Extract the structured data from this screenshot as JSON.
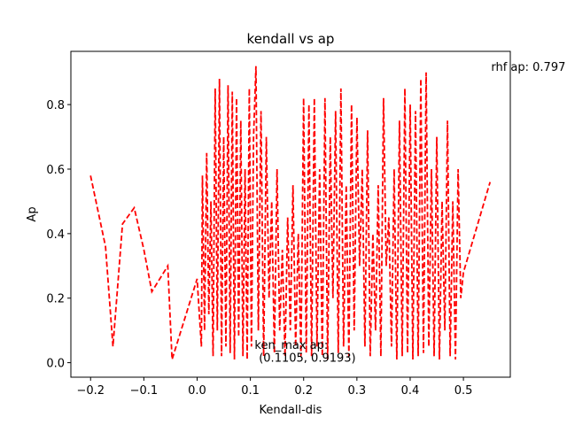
{
  "chart_data": {
    "type": "line",
    "title": "kendall vs ap",
    "xlabel": "Kendall-dis",
    "ylabel": "Ap",
    "xlim": [
      -0.237,
      0.588
    ],
    "ylim": [
      -0.045,
      0.965
    ],
    "xticks": [
      -0.2,
      -0.1,
      0.0,
      0.1,
      0.2,
      0.3,
      0.4,
      0.5
    ],
    "xtick_labels": [
      "−0.2",
      "−0.1",
      "0.0",
      "0.1",
      "0.2",
      "0.3",
      "0.4",
      "0.5"
    ],
    "yticks": [
      0.0,
      0.2,
      0.4,
      0.6,
      0.8
    ],
    "ytick_labels": [
      "0.0",
      "0.2",
      "0.4",
      "0.6",
      "0.8"
    ],
    "grid": false,
    "legend": "none",
    "series": [
      {
        "color": "#ff0000",
        "linestyle": "dashed",
        "x": [
          -0.2,
          -0.172,
          -0.158,
          -0.14,
          -0.118,
          -0.1,
          -0.085,
          -0.055,
          -0.047,
          0.0,
          0.008,
          0.01,
          0.014,
          0.018,
          0.022,
          0.026,
          0.03,
          0.034,
          0.038,
          0.042,
          0.046,
          0.05,
          0.054,
          0.058,
          0.062,
          0.066,
          0.07,
          0.074,
          0.078,
          0.082,
          0.086,
          0.09,
          0.094,
          0.098,
          0.102,
          0.106,
          0.1105,
          0.115,
          0.12,
          0.125,
          0.13,
          0.135,
          0.14,
          0.145,
          0.15,
          0.155,
          0.16,
          0.165,
          0.17,
          0.175,
          0.18,
          0.185,
          0.19,
          0.195,
          0.2,
          0.205,
          0.21,
          0.215,
          0.22,
          0.225,
          0.23,
          0.235,
          0.24,
          0.245,
          0.25,
          0.255,
          0.26,
          0.265,
          0.27,
          0.275,
          0.28,
          0.285,
          0.29,
          0.295,
          0.3,
          0.305,
          0.31,
          0.315,
          0.32,
          0.325,
          0.33,
          0.335,
          0.34,
          0.345,
          0.35,
          0.355,
          0.36,
          0.365,
          0.37,
          0.375,
          0.38,
          0.385,
          0.39,
          0.395,
          0.4,
          0.405,
          0.41,
          0.415,
          0.42,
          0.425,
          0.43,
          0.435,
          0.44,
          0.445,
          0.45,
          0.455,
          0.46,
          0.465,
          0.47,
          0.475,
          0.48,
          0.485,
          0.49,
          0.495,
          0.5,
          0.55
        ],
        "y": [
          0.58,
          0.36,
          0.05,
          0.43,
          0.48,
          0.35,
          0.22,
          0.3,
          0.01,
          0.26,
          0.05,
          0.58,
          0.1,
          0.65,
          0.15,
          0.5,
          0.02,
          0.85,
          0.1,
          0.88,
          0.02,
          0.7,
          0.05,
          0.86,
          0.03,
          0.84,
          0.01,
          0.82,
          0.08,
          0.75,
          0.02,
          0.6,
          0.01,
          0.85,
          0.05,
          0.7,
          0.9193,
          0.1,
          0.78,
          0.02,
          0.7,
          0.2,
          0.5,
          0.03,
          0.6,
          0.1,
          0.35,
          0.02,
          0.45,
          0.1,
          0.55,
          0.05,
          0.4,
          0.02,
          0.82,
          0.03,
          0.8,
          0.02,
          0.82,
          0.05,
          0.6,
          0.02,
          0.82,
          0.01,
          0.7,
          0.2,
          0.78,
          0.03,
          0.85,
          0.05,
          0.55,
          0.02,
          0.8,
          0.1,
          0.76,
          0.3,
          0.6,
          0.05,
          0.72,
          0.02,
          0.4,
          0.1,
          0.55,
          0.02,
          0.82,
          0.3,
          0.45,
          0.05,
          0.6,
          0.01,
          0.75,
          0.02,
          0.85,
          0.03,
          0.8,
          0.01,
          0.78,
          0.02,
          0.88,
          0.03,
          0.9,
          0.05,
          0.6,
          0.02,
          0.7,
          0.01,
          0.5,
          0.1,
          0.75,
          0.02,
          0.5,
          0.01,
          0.6,
          0.2,
          0.28,
          0.56
        ]
      }
    ],
    "annotations": [
      {
        "text": "rhf ap: 0.797",
        "x": 0.552,
        "y": 0.905
      },
      {
        "text": "ken_max ap:",
        "x": 0.108,
        "y": 0.043
      },
      {
        "text": "(0.1105, 0.9193)",
        "x": 0.116,
        "y": 0.003
      }
    ]
  }
}
